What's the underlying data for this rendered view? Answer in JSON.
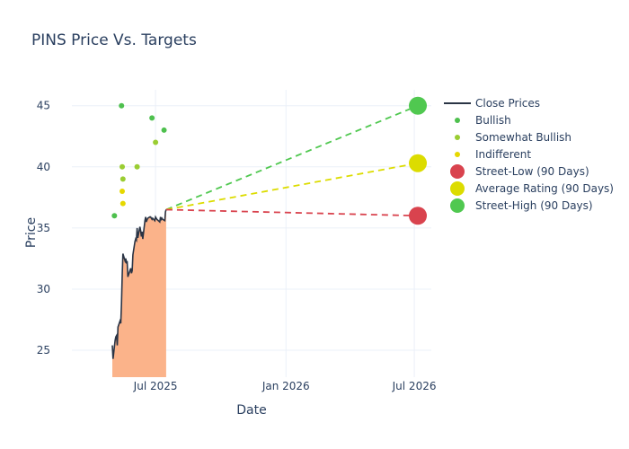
{
  "chart_data": {
    "type": "line",
    "title": "PINS Price Vs. Targets",
    "xlabel": "Date",
    "ylabel": "Price",
    "x_range": [
      "2025-03-05",
      "2026-07-25"
    ],
    "y_range": [
      22.8,
      46.3
    ],
    "x_ticks": [
      {
        "date": "2025-07-01",
        "label": "Jul 2025"
      },
      {
        "date": "2026-01-01",
        "label": "Jan 2026"
      },
      {
        "date": "2026-07-01",
        "label": "Jul 2026"
      }
    ],
    "y_ticks": [
      25,
      30,
      35,
      40,
      45
    ],
    "grid": true,
    "legend_position": "right",
    "colors": {
      "close": "#2a3445",
      "fill": "#fbb38a",
      "bullish": "#4ec04e",
      "somewhat_bullish": "#9acd32",
      "indifferent": "#e6d800",
      "street_low": "#d9434e",
      "average": "#dcdc00",
      "street_high": "#50c850"
    },
    "legend": [
      {
        "key": "close",
        "label": "Close Prices",
        "kind": "line"
      },
      {
        "key": "bullish",
        "label": "Bullish",
        "kind": "dot"
      },
      {
        "key": "somewhat_bullish",
        "label": "Somewhat Bullish",
        "kind": "dot"
      },
      {
        "key": "indifferent",
        "label": "Indifferent",
        "kind": "dot"
      },
      {
        "key": "street_low",
        "label": "Street-Low (90 Days)",
        "kind": "big"
      },
      {
        "key": "average",
        "label": "Average Rating (90 Days)",
        "kind": "big"
      },
      {
        "key": "street_high",
        "label": "Street-High (90 Days)",
        "kind": "big"
      }
    ],
    "close_prices": {
      "dates": [
        "2025-05-01",
        "2025-05-02",
        "2025-05-05",
        "2025-05-06",
        "2025-05-07",
        "2025-05-08",
        "2025-05-09",
        "2025-05-12",
        "2025-05-13",
        "2025-05-14",
        "2025-05-15",
        "2025-05-16",
        "2025-05-19",
        "2025-05-20",
        "2025-05-21",
        "2025-05-22",
        "2025-05-23",
        "2025-05-27",
        "2025-05-28",
        "2025-05-29",
        "2025-05-30",
        "2025-06-02",
        "2025-06-03",
        "2025-06-04",
        "2025-06-05",
        "2025-06-06",
        "2025-06-09",
        "2025-06-10",
        "2025-06-11",
        "2025-06-12",
        "2025-06-13",
        "2025-06-16",
        "2025-06-17",
        "2025-06-18",
        "2025-06-20",
        "2025-06-23",
        "2025-06-24",
        "2025-06-25",
        "2025-06-26",
        "2025-06-27",
        "2025-06-30",
        "2025-07-01",
        "2025-07-02",
        "2025-07-03",
        "2025-07-07",
        "2025-07-08",
        "2025-07-09",
        "2025-07-10",
        "2025-07-11",
        "2025-07-14",
        "2025-07-15",
        "2025-07-16"
      ],
      "values": [
        25.4,
        24.3,
        25.8,
        26.1,
        26.2,
        25.4,
        26.9,
        27.4,
        27.2,
        28.8,
        31.1,
        32.9,
        32.3,
        32.5,
        32.1,
        32.3,
        31.0,
        31.7,
        31.3,
        31.5,
        32.8,
        33.9,
        34.1,
        34.0,
        35.0,
        34.2,
        35.1,
        34.8,
        34.3,
        34.7,
        34.1,
        35.6,
        35.9,
        35.5,
        35.8,
        35.9,
        35.9,
        35.8,
        35.7,
        35.8,
        35.6,
        35.9,
        35.8,
        35.7,
        35.5,
        35.9,
        35.7,
        35.8,
        35.7,
        35.6,
        36.3,
        36.5
      ]
    },
    "ratings": {
      "bullish": [
        {
          "date": "2025-05-04",
          "value": 36
        },
        {
          "date": "2025-05-14",
          "value": 45
        },
        {
          "date": "2025-06-26",
          "value": 44
        },
        {
          "date": "2025-07-13",
          "value": 43
        }
      ],
      "somewhat_bullish": [
        {
          "date": "2025-05-15",
          "value": 40
        },
        {
          "date": "2025-05-16",
          "value": 39
        },
        {
          "date": "2025-06-05",
          "value": 40
        },
        {
          "date": "2025-07-01",
          "value": 42
        }
      ],
      "indifferent": [
        {
          "date": "2025-05-15",
          "value": 38
        },
        {
          "date": "2025-05-16",
          "value": 37
        }
      ]
    },
    "targets": {
      "start": {
        "date": "2025-07-16",
        "value": 36.5
      },
      "end_date": "2026-07-06",
      "street_low": 36,
      "average": 40.3,
      "street_high": 45
    }
  }
}
